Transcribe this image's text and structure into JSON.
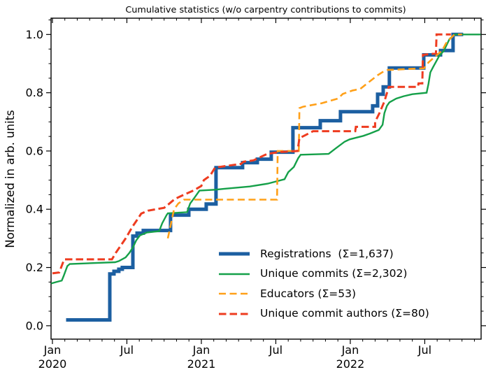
{
  "chart_data": {
    "type": "line",
    "title": "Cumulative statistics (w/o carpentry contributions to commits)",
    "ylabel": "Normalized in arb. units",
    "x_unit": "months since 2020-01-01",
    "xlim": [
      -0.11,
      34.54
    ],
    "ylim": [
      -0.046,
      1.056
    ],
    "x_major_ticks": [
      {
        "m": 0,
        "label": "Jan",
        "year": "2020"
      },
      {
        "m": 6,
        "label": "Jul",
        "year": ""
      },
      {
        "m": 12,
        "label": "Jan",
        "year": "2021"
      },
      {
        "m": 18,
        "label": "Jul",
        "year": ""
      },
      {
        "m": 24,
        "label": "Jan",
        "year": "2022"
      },
      {
        "m": 30,
        "label": "Jul",
        "year": ""
      }
    ],
    "x_minor_step": 1,
    "y_major_ticks": [
      0.0,
      0.2,
      0.4,
      0.6,
      0.8,
      1.0
    ],
    "y_minor_step": 0.05,
    "grid": false,
    "legend_position": "lower right",
    "series": [
      {
        "name": "registrations",
        "legend": "Registrations  (Σ=1,637)",
        "color": "#1c5fa1",
        "width": 5,
        "dash": null,
        "points": [
          [
            1.1,
            0.02
          ],
          [
            4.62,
            0.02
          ],
          [
            4.62,
            0.178
          ],
          [
            4.96,
            0.178
          ],
          [
            4.96,
            0.187
          ],
          [
            5.35,
            0.187
          ],
          [
            5.35,
            0.194
          ],
          [
            5.63,
            0.194
          ],
          [
            5.63,
            0.2
          ],
          [
            6.48,
            0.2
          ],
          [
            6.48,
            0.308
          ],
          [
            6.82,
            0.308
          ],
          [
            6.82,
            0.318
          ],
          [
            7.32,
            0.318
          ],
          [
            7.32,
            0.327
          ],
          [
            9.52,
            0.327
          ],
          [
            9.52,
            0.38
          ],
          [
            10.99,
            0.38
          ],
          [
            10.99,
            0.4
          ],
          [
            12.39,
            0.4
          ],
          [
            12.39,
            0.418
          ],
          [
            13.18,
            0.418
          ],
          [
            13.18,
            0.543
          ],
          [
            15.32,
            0.543
          ],
          [
            15.32,
            0.56
          ],
          [
            16.51,
            0.56
          ],
          [
            16.51,
            0.572
          ],
          [
            17.63,
            0.572
          ],
          [
            17.63,
            0.596
          ],
          [
            19.38,
            0.596
          ],
          [
            19.38,
            0.68
          ],
          [
            21.58,
            0.68
          ],
          [
            21.58,
            0.704
          ],
          [
            23.21,
            0.704
          ],
          [
            23.21,
            0.735
          ],
          [
            25.8,
            0.735
          ],
          [
            25.8,
            0.755
          ],
          [
            26.2,
            0.755
          ],
          [
            26.2,
            0.795
          ],
          [
            26.65,
            0.795
          ],
          [
            26.65,
            0.82
          ],
          [
            27.15,
            0.82
          ],
          [
            27.15,
            0.885
          ],
          [
            29.92,
            0.885
          ],
          [
            29.92,
            0.93
          ],
          [
            31.27,
            0.93
          ],
          [
            31.27,
            0.945
          ],
          [
            32.28,
            0.945
          ],
          [
            32.28,
            1.0
          ],
          [
            33.1,
            1.0
          ]
        ]
      },
      {
        "name": "unique-commits",
        "legend": "Unique commits (Σ=2,302)",
        "color": "#15a049",
        "width": 2.4,
        "dash": null,
        "points": [
          [
            -0.1,
            0.145
          ],
          [
            0.3,
            0.15
          ],
          [
            0.75,
            0.155
          ],
          [
            0.9,
            0.17
          ],
          [
            1.2,
            0.205
          ],
          [
            1.4,
            0.212
          ],
          [
            5.05,
            0.218
          ],
          [
            5.35,
            0.222
          ],
          [
            5.9,
            0.235
          ],
          [
            6.2,
            0.25
          ],
          [
            6.5,
            0.27
          ],
          [
            6.75,
            0.293
          ],
          [
            7.05,
            0.31
          ],
          [
            7.6,
            0.32
          ],
          [
            8.6,
            0.325
          ],
          [
            8.85,
            0.352
          ],
          [
            9.2,
            0.38
          ],
          [
            9.3,
            0.386
          ],
          [
            10.85,
            0.39
          ],
          [
            11.1,
            0.42
          ],
          [
            11.45,
            0.44
          ],
          [
            11.85,
            0.464
          ],
          [
            13.1,
            0.467
          ],
          [
            13.8,
            0.47
          ],
          [
            15.9,
            0.478
          ],
          [
            17.35,
            0.488
          ],
          [
            18.7,
            0.503
          ],
          [
            19.0,
            0.527
          ],
          [
            19.45,
            0.545
          ],
          [
            19.8,
            0.575
          ],
          [
            20.0,
            0.587
          ],
          [
            22.25,
            0.59
          ],
          [
            22.8,
            0.608
          ],
          [
            23.55,
            0.632
          ],
          [
            23.95,
            0.64
          ],
          [
            25.05,
            0.652
          ],
          [
            25.6,
            0.66
          ],
          [
            26.3,
            0.672
          ],
          [
            26.6,
            0.69
          ],
          [
            26.75,
            0.73
          ],
          [
            26.95,
            0.755
          ],
          [
            27.15,
            0.767
          ],
          [
            27.7,
            0.78
          ],
          [
            28.3,
            0.788
          ],
          [
            29.0,
            0.795
          ],
          [
            30.15,
            0.8
          ],
          [
            30.3,
            0.83
          ],
          [
            30.45,
            0.87
          ],
          [
            30.7,
            0.89
          ],
          [
            31.15,
            0.925
          ],
          [
            31.55,
            0.945
          ],
          [
            32.0,
            0.985
          ],
          [
            32.4,
            1.0
          ],
          [
            34.5,
            1.0
          ]
        ]
      },
      {
        "name": "educators",
        "legend": "Educators (Σ=53)",
        "color": "#ffa019",
        "width": 2.6,
        "dash": "10 5.5",
        "points": [
          [
            9.3,
            0.3
          ],
          [
            9.5,
            0.34
          ],
          [
            9.8,
            0.4
          ],
          [
            10.15,
            0.42
          ],
          [
            10.6,
            0.433
          ],
          [
            18.1,
            0.433
          ],
          [
            18.15,
            0.6
          ],
          [
            19.85,
            0.6
          ],
          [
            19.9,
            0.747
          ],
          [
            20.2,
            0.752
          ],
          [
            21.7,
            0.764
          ],
          [
            23.0,
            0.78
          ],
          [
            23.4,
            0.796
          ],
          [
            24.2,
            0.808
          ],
          [
            24.8,
            0.813
          ],
          [
            25.6,
            0.84
          ],
          [
            26.2,
            0.86
          ],
          [
            26.75,
            0.875
          ],
          [
            27.0,
            0.878
          ],
          [
            29.95,
            0.884
          ],
          [
            30.3,
            0.904
          ],
          [
            30.8,
            0.923
          ],
          [
            31.4,
            0.945
          ],
          [
            31.7,
            0.969
          ],
          [
            32.1,
            0.988
          ],
          [
            32.4,
            1.0
          ],
          [
            33.0,
            1.0
          ]
        ]
      },
      {
        "name": "unique-commit-authors",
        "legend": "Unique commit authors (Σ=80)",
        "color": "#ee3c20",
        "width": 3,
        "dash": "10.5 5",
        "points": [
          [
            0.0,
            0.18
          ],
          [
            0.55,
            0.183
          ],
          [
            0.95,
            0.228
          ],
          [
            4.8,
            0.228
          ],
          [
            5.1,
            0.25
          ],
          [
            5.5,
            0.275
          ],
          [
            5.9,
            0.3
          ],
          [
            6.45,
            0.34
          ],
          [
            6.8,
            0.362
          ],
          [
            7.15,
            0.385
          ],
          [
            7.7,
            0.395
          ],
          [
            9.0,
            0.405
          ],
          [
            9.3,
            0.415
          ],
          [
            9.85,
            0.435
          ],
          [
            10.6,
            0.45
          ],
          [
            11.4,
            0.465
          ],
          [
            12.0,
            0.48
          ],
          [
            12.2,
            0.5
          ],
          [
            12.7,
            0.515
          ],
          [
            13.1,
            0.543
          ],
          [
            15.2,
            0.556
          ],
          [
            15.4,
            0.563
          ],
          [
            16.2,
            0.568
          ],
          [
            17.3,
            0.59
          ],
          [
            18.2,
            0.596
          ],
          [
            19.75,
            0.6
          ],
          [
            19.9,
            0.644
          ],
          [
            21.0,
            0.668
          ],
          [
            24.4,
            0.668
          ],
          [
            24.45,
            0.683
          ],
          [
            26.0,
            0.683
          ],
          [
            26.0,
            0.7
          ],
          [
            26.35,
            0.73
          ],
          [
            26.75,
            0.77
          ],
          [
            27.1,
            0.82
          ],
          [
            29.45,
            0.82
          ],
          [
            29.5,
            0.832
          ],
          [
            29.8,
            0.832
          ],
          [
            29.85,
            0.93
          ],
          [
            30.9,
            0.935
          ],
          [
            30.95,
            1.0
          ],
          [
            32.1,
            1.0
          ]
        ]
      }
    ]
  }
}
